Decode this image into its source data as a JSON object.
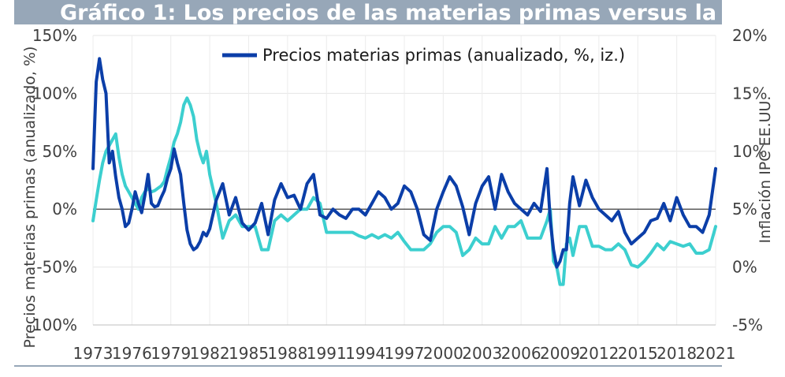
{
  "title": "Gráfico 1: Los precios de las materias primas versus la",
  "chart_data": {
    "type": "line",
    "ylabel_left": "Precios materias primas (anualizado, %)",
    "ylabel_right": "Inflación IPC EE.UU.",
    "left_ticks": [
      "150%",
      "100%",
      "50%",
      "0%",
      "-50%",
      "-100%"
    ],
    "left_ylim": [
      -100,
      150
    ],
    "right_ticks": [
      "20%",
      "15%",
      "10%",
      "5%",
      "0%",
      "-5%"
    ],
    "right_ylim": [
      -5,
      20
    ],
    "x_ticks": [
      "1973",
      "1976",
      "1979",
      "1982",
      "1985",
      "1988",
      "1991",
      "1994",
      "1997",
      "2000",
      "2003",
      "2006",
      "2009",
      "2012",
      "2015",
      "2018",
      "2021"
    ],
    "xlim": [
      1973,
      2021
    ],
    "legend": [
      {
        "label": "Precios materias primas (anualizado, %, iz.)",
        "color": "#0b3ea8"
      }
    ],
    "series": [
      {
        "name": "Precios materias primas (anualizado, %, iz.)",
        "axis": "left",
        "color": "#0b3ea8",
        "x": [
          1973.0,
          1973.25,
          1973.5,
          1973.75,
          1974.0,
          1974.25,
          1974.5,
          1974.75,
          1975.0,
          1975.25,
          1975.5,
          1975.75,
          1976.0,
          1976.25,
          1976.5,
          1976.75,
          1977.0,
          1977.25,
          1977.5,
          1977.75,
          1978.0,
          1978.25,
          1978.5,
          1978.75,
          1979.0,
          1979.25,
          1979.5,
          1979.75,
          1980.0,
          1980.25,
          1980.5,
          1980.75,
          1981.0,
          1981.25,
          1981.5,
          1981.75,
          1982.0,
          1982.5,
          1983.0,
          1983.5,
          1984.0,
          1984.5,
          1985.0,
          1985.5,
          1986.0,
          1986.5,
          1987.0,
          1987.5,
          1988.0,
          1988.5,
          1989.0,
          1989.5,
          1990.0,
          1990.5,
          1991.0,
          1991.5,
          1992.0,
          1992.5,
          1993.0,
          1993.5,
          1994.0,
          1994.5,
          1995.0,
          1995.5,
          1996.0,
          1996.5,
          1997.0,
          1997.5,
          1998.0,
          1998.5,
          1999.0,
          1999.5,
          2000.0,
          2000.5,
          2001.0,
          2001.5,
          2002.0,
          2002.5,
          2003.0,
          2003.5,
          2004.0,
          2004.5,
          2005.0,
          2005.5,
          2006.0,
          2006.5,
          2007.0,
          2007.5,
          2008.0,
          2008.25,
          2008.5,
          2008.75,
          2009.0,
          2009.25,
          2009.5,
          2009.75,
          2010.0,
          2010.5,
          2011.0,
          2011.5,
          2012.0,
          2012.5,
          2013.0,
          2013.5,
          2014.0,
          2014.5,
          2015.0,
          2015.5,
          2016.0,
          2016.5,
          2017.0,
          2017.5,
          2018.0,
          2018.5,
          2019.0,
          2019.5,
          2020.0,
          2020.5,
          2021.0
        ],
        "values": [
          35,
          110,
          130,
          112,
          100,
          40,
          50,
          28,
          10,
          0,
          -15,
          -12,
          0,
          15,
          5,
          -3,
          12,
          30,
          5,
          2,
          3,
          10,
          16,
          27,
          35,
          52,
          40,
          30,
          5,
          -18,
          -30,
          -35,
          -33,
          -28,
          -20,
          -23,
          -17,
          8,
          22,
          -5,
          10,
          -12,
          -18,
          -12,
          5,
          -22,
          8,
          22,
          10,
          12,
          0,
          22,
          30,
          -5,
          -8,
          0,
          -5,
          -8,
          0,
          0,
          -5,
          5,
          15,
          10,
          0,
          5,
          20,
          15,
          0,
          -22,
          -27,
          0,
          15,
          28,
          20,
          2,
          -22,
          5,
          20,
          28,
          0,
          30,
          15,
          5,
          0,
          -5,
          5,
          -2,
          35,
          -10,
          -35,
          -50,
          -45,
          -35,
          -35,
          5,
          28,
          3,
          25,
          10,
          0,
          -5,
          -10,
          -2,
          -20,
          -30,
          -25,
          -20,
          -10,
          -8,
          5,
          -10,
          10,
          -5,
          -15,
          -15,
          -20,
          -5,
          35
        ]
      },
      {
        "name": "Inflación IPC EE.UU. (der.)",
        "axis": "right",
        "color": "#3ccfcf",
        "x": [
          1973.0,
          1973.25,
          1973.5,
          1973.75,
          1974.0,
          1974.25,
          1974.5,
          1974.75,
          1975.0,
          1975.25,
          1975.5,
          1975.75,
          1976.0,
          1976.25,
          1976.5,
          1976.75,
          1977.0,
          1977.25,
          1977.5,
          1977.75,
          1978.0,
          1978.25,
          1978.5,
          1978.75,
          1979.0,
          1979.25,
          1979.5,
          1979.75,
          1980.0,
          1980.25,
          1980.5,
          1980.75,
          1981.0,
          1981.25,
          1981.5,
          1981.75,
          1982.0,
          1982.5,
          1983.0,
          1983.5,
          1984.0,
          1984.5,
          1985.0,
          1985.5,
          1986.0,
          1986.5,
          1987.0,
          1987.5,
          1988.0,
          1988.5,
          1989.0,
          1989.5,
          1990.0,
          1990.5,
          1991.0,
          1991.5,
          1992.0,
          1992.5,
          1993.0,
          1993.5,
          1994.0,
          1994.5,
          1995.0,
          1995.5,
          1996.0,
          1996.5,
          1997.0,
          1997.5,
          1998.0,
          1998.5,
          1999.0,
          1999.5,
          2000.0,
          2000.5,
          2001.0,
          2001.5,
          2002.0,
          2002.5,
          2003.0,
          2003.5,
          2004.0,
          2004.5,
          2005.0,
          2005.5,
          2006.0,
          2006.5,
          2007.0,
          2007.5,
          2008.0,
          2008.25,
          2008.5,
          2008.75,
          2009.0,
          2009.25,
          2009.5,
          2009.75,
          2010.0,
          2010.5,
          2011.0,
          2011.5,
          2012.0,
          2012.5,
          2013.0,
          2013.5,
          2014.0,
          2014.5,
          2015.0,
          2015.5,
          2016.0,
          2016.5,
          2017.0,
          2017.5,
          2018.0,
          2018.5,
          2019.0,
          2019.5,
          2020.0,
          2020.5,
          2021.0
        ],
        "values": [
          4.0,
          5.8,
          7.5,
          9.0,
          10.0,
          10.5,
          11.0,
          11.5,
          9.5,
          8.0,
          7.0,
          6.5,
          6.0,
          5.5,
          5.0,
          6.0,
          6.5,
          6.8,
          6.5,
          6.6,
          6.8,
          7.0,
          7.4,
          8.5,
          9.5,
          10.8,
          11.5,
          12.5,
          14.0,
          14.6,
          14.0,
          13.0,
          11.0,
          9.8,
          9.0,
          10.0,
          8.0,
          5.5,
          2.5,
          4.0,
          4.5,
          3.5,
          3.5,
          3.5,
          1.5,
          1.5,
          4.0,
          4.5,
          4.0,
          4.5,
          5.0,
          5.0,
          6.0,
          5.5,
          3.0,
          3.0,
          3.0,
          3.0,
          3.0,
          2.7,
          2.5,
          2.8,
          2.5,
          2.8,
          2.5,
          3.0,
          2.2,
          1.5,
          1.5,
          1.5,
          2.0,
          3.0,
          3.5,
          3.5,
          3.0,
          1.0,
          1.5,
          2.5,
          2.0,
          2.0,
          3.5,
          2.5,
          3.5,
          3.5,
          4.0,
          2.5,
          2.5,
          2.5,
          4.0,
          5.0,
          0.5,
          0.0,
          -1.5,
          -1.5,
          2.0,
          2.5,
          1.0,
          3.5,
          3.5,
          1.8,
          1.8,
          1.5,
          1.5,
          2.0,
          1.5,
          0.2,
          0.0,
          0.5,
          1.2,
          2.0,
          1.5,
          2.2,
          2.0,
          1.8,
          2.0,
          1.2,
          1.2,
          1.5,
          3.5
        ]
      }
    ]
  }
}
